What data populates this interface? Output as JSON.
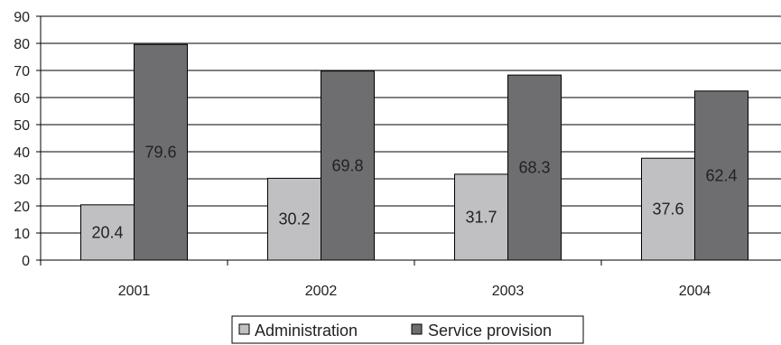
{
  "chart_data": {
    "type": "bar",
    "categories": [
      "2001",
      "2002",
      "2003",
      "2004"
    ],
    "series": [
      {
        "name": "Administration",
        "values": [
          20.4,
          30.2,
          31.7,
          37.6
        ],
        "color": "#c0c0c2"
      },
      {
        "name": "Service provision",
        "values": [
          79.6,
          69.8,
          68.3,
          62.4
        ],
        "color": "#6e6e70"
      }
    ],
    "data_labels": [
      [
        "20.4",
        "30.2",
        "31.7",
        "37.6"
      ],
      [
        "79.6",
        "69.8",
        "68.3",
        "62.4"
      ]
    ],
    "yticks": [
      "0",
      "10",
      "20",
      "30",
      "40",
      "50",
      "60",
      "70",
      "80",
      "90"
    ],
    "ylim": [
      0,
      90
    ],
    "title": "",
    "xlabel": "",
    "ylabel": "",
    "grid": "horizontal",
    "legend_position": "bottom-center"
  }
}
